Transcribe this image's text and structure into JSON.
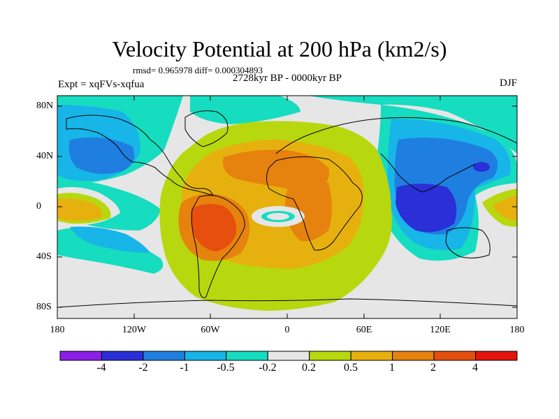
{
  "title": "Velocity Potential at 200 hPa (km2/s)",
  "stats_text": "rmsd= 0.965978 diff= 0.000304893",
  "left_string": "Expt = xqFVs-xqfua",
  "center_string": "2728kyr BP - 0000kyr BP",
  "right_string": "DJF",
  "y_ticks": [
    "80N",
    "40N",
    "0",
    "40S",
    "80S"
  ],
  "x_ticks": [
    "180",
    "120W",
    "60W",
    "0",
    "60E",
    "120E",
    "180"
  ],
  "colorbar": {
    "labels": [
      "-4",
      "-2",
      "-1",
      "-0.5",
      "-0.2",
      "0.2",
      "0.5",
      "1",
      "2",
      "4"
    ],
    "colors": [
      "#8a1fe6",
      "#2b2fd7",
      "#1f7fe0",
      "#17b5e8",
      "#16dcc0",
      "#e6e6e6",
      "#b7d80e",
      "#e6b10e",
      "#e6820e",
      "#e64f0e",
      "#e3150e"
    ]
  },
  "fill_colors": {
    "neg_strong": "#2b2fd7",
    "neg_2": "#1f7fe0",
    "neg_1": "#17b5e8",
    "neg_05": "#16dcc0",
    "neutral": "#e6e6e6",
    "pos_02": "#b7d80e",
    "pos_05": "#e6b10e",
    "pos_1": "#e6820e",
    "pos_2": "#e64f0e"
  }
}
